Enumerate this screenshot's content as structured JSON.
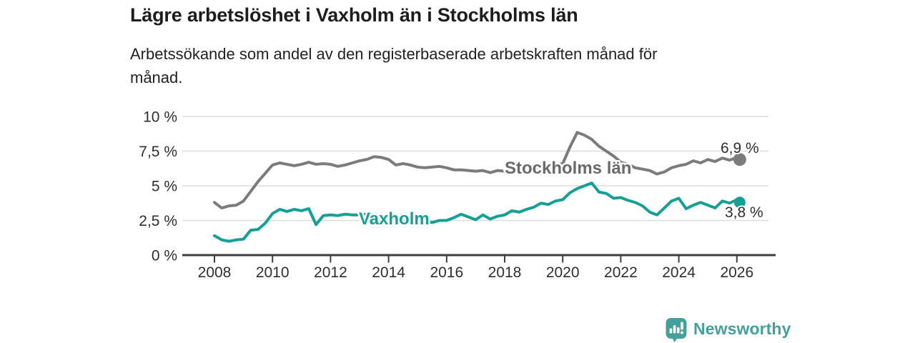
{
  "header": {
    "title": "Lägre arbetslöshet i Vaxholm än i Stockholms län",
    "subtitle": "Arbetssökande som andel av den registerbaserade arbetskraften månad för månad."
  },
  "chart_data": {
    "type": "line",
    "title": "Lägre arbetslöshet i Vaxholm än i Stockholms län",
    "subtitle": "Arbetssökande som andel av den registerbaserade arbetskraften månad för månad.",
    "unit": "%",
    "grid": "horizontal",
    "legend_position": "inline-labels",
    "ylim": [
      0,
      10
    ],
    "xlim": [
      2007.9,
      2027.3
    ],
    "y_axis": {
      "ticks": [
        {
          "value": 0,
          "label": "0 %"
        },
        {
          "value": 2.5,
          "label": "2,5 %"
        },
        {
          "value": 5,
          "label": "5 %"
        },
        {
          "value": 7.5,
          "label": "7,5 %"
        },
        {
          "value": 10,
          "label": "10 %"
        }
      ]
    },
    "x_axis": {
      "ticks": [
        {
          "value": 2008,
          "label": "2008"
        },
        {
          "value": 2010,
          "label": "2010"
        },
        {
          "value": 2012,
          "label": "2012"
        },
        {
          "value": 2014,
          "label": "2014"
        },
        {
          "value": 2016,
          "label": "2016"
        },
        {
          "value": 2018,
          "label": "2018"
        },
        {
          "value": 2020,
          "label": "2020"
        },
        {
          "value": 2022,
          "label": "2022"
        },
        {
          "value": 2024,
          "label": "2024"
        },
        {
          "value": 2026,
          "label": "2026"
        }
      ]
    },
    "x": [
      2008,
      2008.25,
      2008.5,
      2008.75,
      2009,
      2009.25,
      2009.5,
      2009.75,
      2010,
      2010.25,
      2010.5,
      2010.75,
      2011,
      2011.25,
      2011.5,
      2011.75,
      2012,
      2012.25,
      2012.5,
      2012.75,
      2013,
      2013.25,
      2013.5,
      2013.75,
      2014,
      2014.25,
      2014.5,
      2014.75,
      2015,
      2015.25,
      2015.5,
      2015.75,
      2016,
      2016.25,
      2016.5,
      2016.75,
      2017,
      2017.25,
      2017.5,
      2017.75,
      2018,
      2018.25,
      2018.5,
      2018.75,
      2019,
      2019.25,
      2019.5,
      2019.75,
      2020,
      2020.25,
      2020.5,
      2020.75,
      2021,
      2021.25,
      2021.5,
      2021.75,
      2022,
      2022.25,
      2022.5,
      2022.75,
      2023,
      2023.25,
      2023.5,
      2023.75,
      2024,
      2024.25,
      2024.5,
      2024.75,
      2025,
      2025.25,
      2025.5,
      2025.75,
      2026,
      2026.1
    ],
    "series": [
      {
        "name": "Stockholms län",
        "color": "#7b7b7b",
        "label_color": "#6a6a6a",
        "end_label": "6,9 %",
        "end_value": 6.9,
        "values": [
          3.8,
          3.4,
          3.55,
          3.6,
          3.9,
          4.6,
          5.3,
          5.9,
          6.5,
          6.65,
          6.55,
          6.45,
          6.55,
          6.7,
          6.55,
          6.6,
          6.55,
          6.4,
          6.5,
          6.65,
          6.8,
          6.9,
          7.1,
          7.05,
          6.9,
          6.5,
          6.6,
          6.5,
          6.35,
          6.3,
          6.35,
          6.4,
          6.3,
          6.15,
          6.15,
          6.1,
          6.05,
          6.1,
          5.95,
          6.1,
          6.05,
          6.0,
          6.05,
          6.0,
          6.1,
          6.3,
          6.4,
          6.5,
          6.6,
          7.8,
          8.85,
          8.65,
          8.35,
          7.85,
          7.5,
          7.15,
          6.7,
          6.55,
          6.3,
          6.2,
          6.1,
          5.85,
          6.0,
          6.3,
          6.45,
          6.55,
          6.8,
          6.65,
          6.9,
          6.75,
          7.0,
          6.85,
          7.05,
          6.9
        ]
      },
      {
        "name": "Vaxholm",
        "color": "#14a094",
        "label_color": "#14a094",
        "end_label": "3,8 %",
        "end_value": 3.8,
        "values": [
          1.4,
          1.1,
          1.0,
          1.1,
          1.15,
          1.8,
          1.85,
          2.3,
          3.0,
          3.3,
          3.15,
          3.3,
          3.2,
          3.35,
          2.2,
          2.85,
          2.9,
          2.85,
          2.95,
          2.9,
          2.9,
          2.95,
          2.9,
          2.8,
          2.7,
          2.6,
          2.45,
          2.35,
          2.3,
          2.45,
          2.35,
          2.5,
          2.5,
          2.7,
          2.95,
          2.75,
          2.55,
          2.9,
          2.6,
          2.8,
          2.9,
          3.2,
          3.1,
          3.3,
          3.45,
          3.75,
          3.65,
          3.9,
          4.0,
          4.5,
          4.8,
          5.0,
          5.2,
          4.55,
          4.45,
          4.1,
          4.15,
          3.95,
          3.8,
          3.55,
          3.1,
          2.9,
          3.4,
          3.9,
          4.1,
          3.35,
          3.6,
          3.8,
          3.6,
          3.4,
          3.9,
          3.75,
          4.0,
          3.8
        ]
      }
    ],
    "colors": {
      "grid": "#dcdcdc",
      "axis": "#3d3d3d",
      "tick_text": "#2e2e2e",
      "end_label_text": "#2e2e2e"
    }
  },
  "footer": {
    "brand": "Newsworthy",
    "brand_icon": "newsworthy-speech-bubble-bar-chart-icon",
    "brand_color": "#44a09b"
  }
}
